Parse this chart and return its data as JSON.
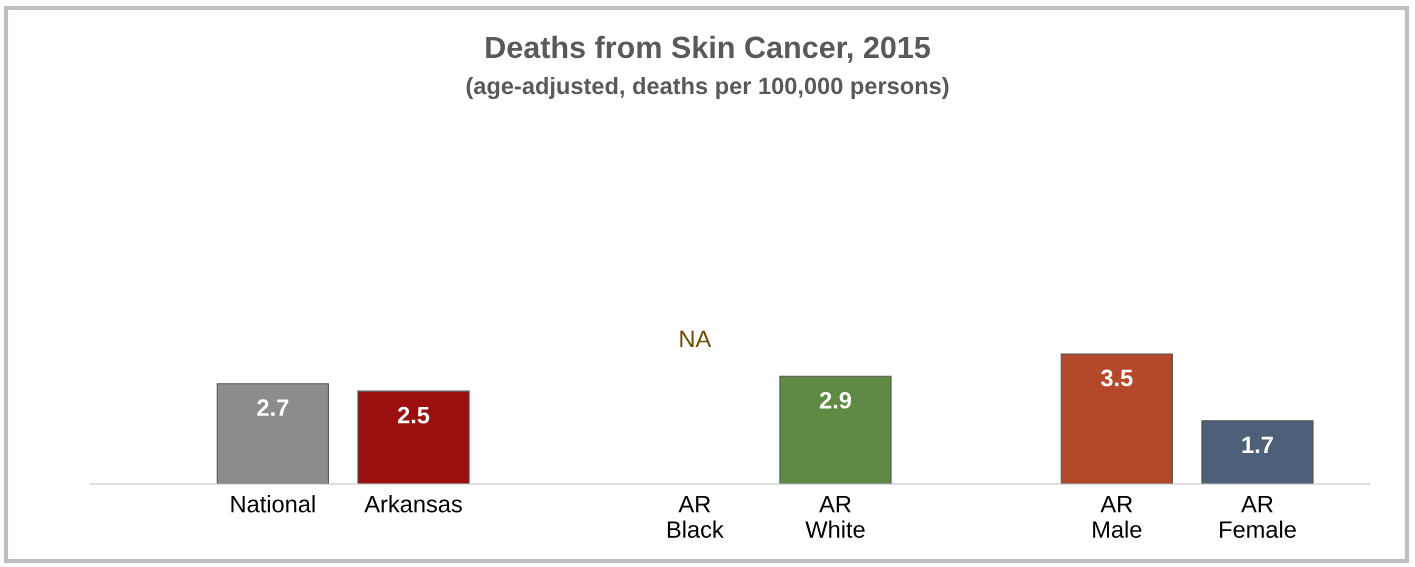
{
  "chart_data": {
    "type": "bar",
    "title": "Deaths from Skin Cancer, 2015",
    "subtitle": "(age-adjusted, deaths per 100,000 persons)",
    "categories": [
      "National",
      "Arkansas",
      null,
      "AR\nBlack",
      "AR\nWhite",
      null,
      "AR\nMale",
      "AR\nFemale"
    ],
    "values": [
      2.7,
      2.5,
      null,
      null,
      2.9,
      null,
      3.5,
      1.7
    ],
    "colors": [
      "#8c8c8c",
      "#9b0f0f",
      "#000000",
      "#000000",
      "#5f8a45",
      "#000000",
      "#b5472b",
      "#4d6078"
    ],
    "value_labels": [
      "2.7",
      "2.5",
      null,
      "NA",
      "2.9",
      null,
      "3.5",
      "1.7"
    ],
    "grid": false,
    "legend": false
  }
}
